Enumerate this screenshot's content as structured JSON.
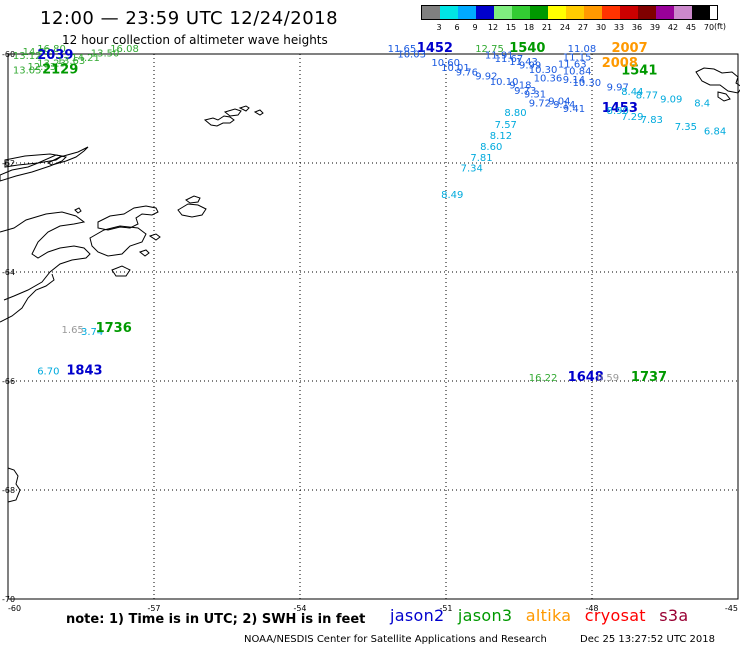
{
  "header": {
    "title": "12:00 — 23:59 UTC 12/24/2018",
    "subtitle": "12 hour collection of altimeter wave heights"
  },
  "scale": {
    "labels": [
      "3",
      "6",
      "9",
      "12",
      "15",
      "18",
      "21",
      "24",
      "27",
      "30",
      "33",
      "36",
      "39",
      "42",
      "45",
      "70"
    ],
    "unit": "(ft)",
    "colors": [
      "#808080",
      "#00e5e5",
      "#00aaff",
      "#0000cc",
      "#7fee7f",
      "#33cc33",
      "#009900",
      "#ffff00",
      "#ffcc00",
      "#ff9900",
      "#ff3300",
      "#cc0000",
      "#800000",
      "#990099",
      "#cc88cc",
      "#000000"
    ]
  },
  "map": {
    "lon_ticks": [
      "-60",
      "-57",
      "-54",
      "-51",
      "-48",
      "-45"
    ],
    "lat_ticks": [
      "-60",
      "-62",
      "-64",
      "-66",
      "-68",
      "-70"
    ],
    "grid": true
  },
  "satellite_colors": {
    "jason2": "#0000cc",
    "jason3": "#009900",
    "altika": "#ff9900",
    "cryosat": "#ff0000",
    "s3a": "#990033",
    "j2_wave": "#1a5ae0",
    "j3_wave": "#33aa33",
    "s3a_wave": "#999999",
    "c_wave": "#00aadd"
  },
  "observations": [
    {
      "text": "11.65",
      "color": "j2_wave",
      "lon": -52.2,
      "lat": -59.96
    },
    {
      "text": "1452",
      "color": "jason2",
      "lon": -51.6,
      "lat": -59.96,
      "time": true
    },
    {
      "text": "10.03",
      "color": "j2_wave",
      "lon": -52.0,
      "lat": -60.06
    },
    {
      "text": "10.60",
      "color": "j2_wave",
      "lon": -51.3,
      "lat": -60.22
    },
    {
      "text": "10.01",
      "color": "j2_wave",
      "lon": -51.1,
      "lat": -60.31
    },
    {
      "text": "9.76",
      "color": "j2_wave",
      "lon": -50.8,
      "lat": -60.39
    },
    {
      "text": "9.92",
      "color": "j2_wave",
      "lon": -50.4,
      "lat": -60.47
    },
    {
      "text": "10.10",
      "color": "j2_wave",
      "lon": -50.1,
      "lat": -60.57
    },
    {
      "text": "9.18",
      "color": "j2_wave",
      "lon": -49.7,
      "lat": -60.63
    },
    {
      "text": "9.72",
      "color": "j2_wave",
      "lon": -49.3,
      "lat": -60.96
    },
    {
      "text": "9.41",
      "color": "j2_wave",
      "lon": -48.6,
      "lat": -61.06
    },
    {
      "text": "1453",
      "color": "jason2",
      "lon": -47.8,
      "lat": -61.06,
      "time": true
    },
    {
      "text": "12.75",
      "color": "j3_wave",
      "lon": -50.4,
      "lat": -59.96
    },
    {
      "text": "1540",
      "color": "jason3",
      "lon": -49.7,
      "lat": -59.96,
      "time": true
    },
    {
      "text": "11.91",
      "color": "j2_wave",
      "lon": -50.2,
      "lat": -60.08
    },
    {
      "text": "11.67",
      "color": "j2_wave",
      "lon": -50.0,
      "lat": -60.15
    },
    {
      "text": "11.43",
      "color": "j2_wave",
      "lon": -49.7,
      "lat": -60.2
    },
    {
      "text": "9.99",
      "color": "j2_wave",
      "lon": -49.5,
      "lat": -60.27
    },
    {
      "text": "10.30",
      "color": "j2_wave",
      "lon": -49.3,
      "lat": -60.35
    },
    {
      "text": "10.36",
      "color": "j2_wave",
      "lon": -49.2,
      "lat": -60.5
    },
    {
      "text": "9.73",
      "color": "j2_wave",
      "lon": -49.6,
      "lat": -60.73
    },
    {
      "text": "9.31",
      "color": "j2_wave",
      "lon": -49.4,
      "lat": -60.8
    },
    {
      "text": "9.04",
      "color": "j2_wave",
      "lon": -48.9,
      "lat": -60.93
    },
    {
      "text": "9.14",
      "color": "j2_wave",
      "lon": -48.8,
      "lat": -60.99
    },
    {
      "text": "1541",
      "color": "jason3",
      "lon": -47.4,
      "lat": -60.38,
      "time": true
    },
    {
      "text": "11.08",
      "color": "j2_wave",
      "lon": -48.5,
      "lat": -59.96
    },
    {
      "text": "2007",
      "color": "altika",
      "lon": -47.6,
      "lat": -59.96,
      "time": true
    },
    {
      "text": "11.15",
      "color": "j2_wave",
      "lon": -48.6,
      "lat": -60.12
    },
    {
      "text": "11.63",
      "color": "j2_wave",
      "lon": -48.7,
      "lat": -60.25
    },
    {
      "text": "2008",
      "color": "altika",
      "lon": -47.8,
      "lat": -60.24,
      "time": true
    },
    {
      "text": "10.84",
      "color": "j2_wave",
      "lon": -48.6,
      "lat": -60.38
    },
    {
      "text": "9.14",
      "color": "j2_wave",
      "lon": -48.6,
      "lat": -60.53
    },
    {
      "text": "10.30",
      "color": "j2_wave",
      "lon": -48.4,
      "lat": -60.59
    },
    {
      "text": "9.97",
      "color": "j2_wave",
      "lon": -47.7,
      "lat": -60.67
    },
    {
      "text": "8.44",
      "color": "c_wave",
      "lon": -47.4,
      "lat": -60.75
    },
    {
      "text": "8.77",
      "color": "c_wave",
      "lon": -47.1,
      "lat": -60.82
    },
    {
      "text": "9.09",
      "color": "c_wave",
      "lon": -46.6,
      "lat": -60.89
    },
    {
      "text": "8.4",
      "color": "c_wave",
      "lon": -45.9,
      "lat": -60.96
    },
    {
      "text": "8.90",
      "color": "c_wave",
      "lon": -47.7,
      "lat": -61.1
    },
    {
      "text": "7.29",
      "color": "c_wave",
      "lon": -47.4,
      "lat": -61.21
    },
    {
      "text": "7.83",
      "color": "c_wave",
      "lon": -47.0,
      "lat": -61.27
    },
    {
      "text": "7.35",
      "color": "c_wave",
      "lon": -46.3,
      "lat": -61.39
    },
    {
      "text": "6.84",
      "color": "c_wave",
      "lon": -45.7,
      "lat": -61.48
    },
    {
      "text": "8.80",
      "color": "c_wave",
      "lon": -49.8,
      "lat": -61.14
    },
    {
      "text": "7.57",
      "color": "c_wave",
      "lon": -50.0,
      "lat": -61.36
    },
    {
      "text": "8.12",
      "color": "c_wave",
      "lon": -50.1,
      "lat": -61.56
    },
    {
      "text": "8.60",
      "color": "c_wave",
      "lon": -50.3,
      "lat": -61.76
    },
    {
      "text": "7.81",
      "color": "c_wave",
      "lon": -50.5,
      "lat": -61.96
    },
    {
      "text": "7.34",
      "color": "c_wave",
      "lon": -50.7,
      "lat": -62.16
    },
    {
      "text": "8.49",
      "color": "c_wave",
      "lon": -51.1,
      "lat": -62.64
    },
    {
      "text": "16.80",
      "color": "j3_wave",
      "lon": -59.4,
      "lat": -59.96
    },
    {
      "text": "16.08",
      "color": "j3_wave",
      "lon": -57.9,
      "lat": -59.96
    },
    {
      "text": "14.52",
      "color": "j3_wave",
      "lon": -59.7,
      "lat": -60.02
    },
    {
      "text": "13.50",
      "color": "j3_wave",
      "lon": -58.3,
      "lat": -60.05
    },
    {
      "text": "13.12",
      "color": "j3_wave",
      "lon": -59.9,
      "lat": -60.09
    },
    {
      "text": "2039",
      "color": "jason2",
      "lon": -59.4,
      "lat": -60.09,
      "time": true
    },
    {
      "text": "14.21",
      "color": "j3_wave",
      "lon": -58.7,
      "lat": -60.13
    },
    {
      "text": "13.63",
      "color": "j3_wave",
      "lon": -59.0,
      "lat": -60.18
    },
    {
      "text": "13.23",
      "color": "j3_wave",
      "lon": -59.4,
      "lat": -60.23
    },
    {
      "text": "12.93",
      "color": "j3_wave",
      "lon": -59.6,
      "lat": -60.29
    },
    {
      "text": "13.05",
      "color": "j3_wave",
      "lon": -59.9,
      "lat": -60.36
    },
    {
      "text": "2129",
      "color": "jason3",
      "lon": -59.3,
      "lat": -60.36,
      "time": true
    },
    {
      "text": "1.65",
      "color": "s3a_wave",
      "lon": -58.9,
      "lat": -65.12
    },
    {
      "text": "3.74",
      "color": "c_wave",
      "lon": -58.5,
      "lat": -65.16
    },
    {
      "text": "1736",
      "color": "jason3",
      "lon": -58.2,
      "lat": -65.1,
      "time": true
    },
    {
      "text": "6.70",
      "color": "c_wave",
      "lon": -59.4,
      "lat": -65.88
    },
    {
      "text": "1843",
      "color": "jason2",
      "lon": -58.8,
      "lat": -65.88,
      "time": true
    },
    {
      "text": "16.22",
      "color": "j3_wave",
      "lon": -49.3,
      "lat": -66.0
    },
    {
      "text": "1648",
      "color": "jason2",
      "lon": -48.5,
      "lat": -66.0,
      "time": true
    },
    {
      "text": "0.59",
      "color": "s3a_wave",
      "lon": -47.9,
      "lat": -66.0
    },
    {
      "text": "1737",
      "color": "jason3",
      "lon": -47.2,
      "lat": -66.0,
      "time": true
    }
  ],
  "footer": {
    "note": "note: 1) Time is in UTC; 2) SWH is in feet",
    "legend": {
      "jason2": "jason2",
      "jason3": "jason3",
      "altika": "altika",
      "cryosat": "cryosat",
      "s3a": "s3a"
    },
    "credit": "NOAA/NESDIS Center for Satellite Applications and Research",
    "timestamp": "Dec 25 13:27:52 UTC 2018"
  }
}
